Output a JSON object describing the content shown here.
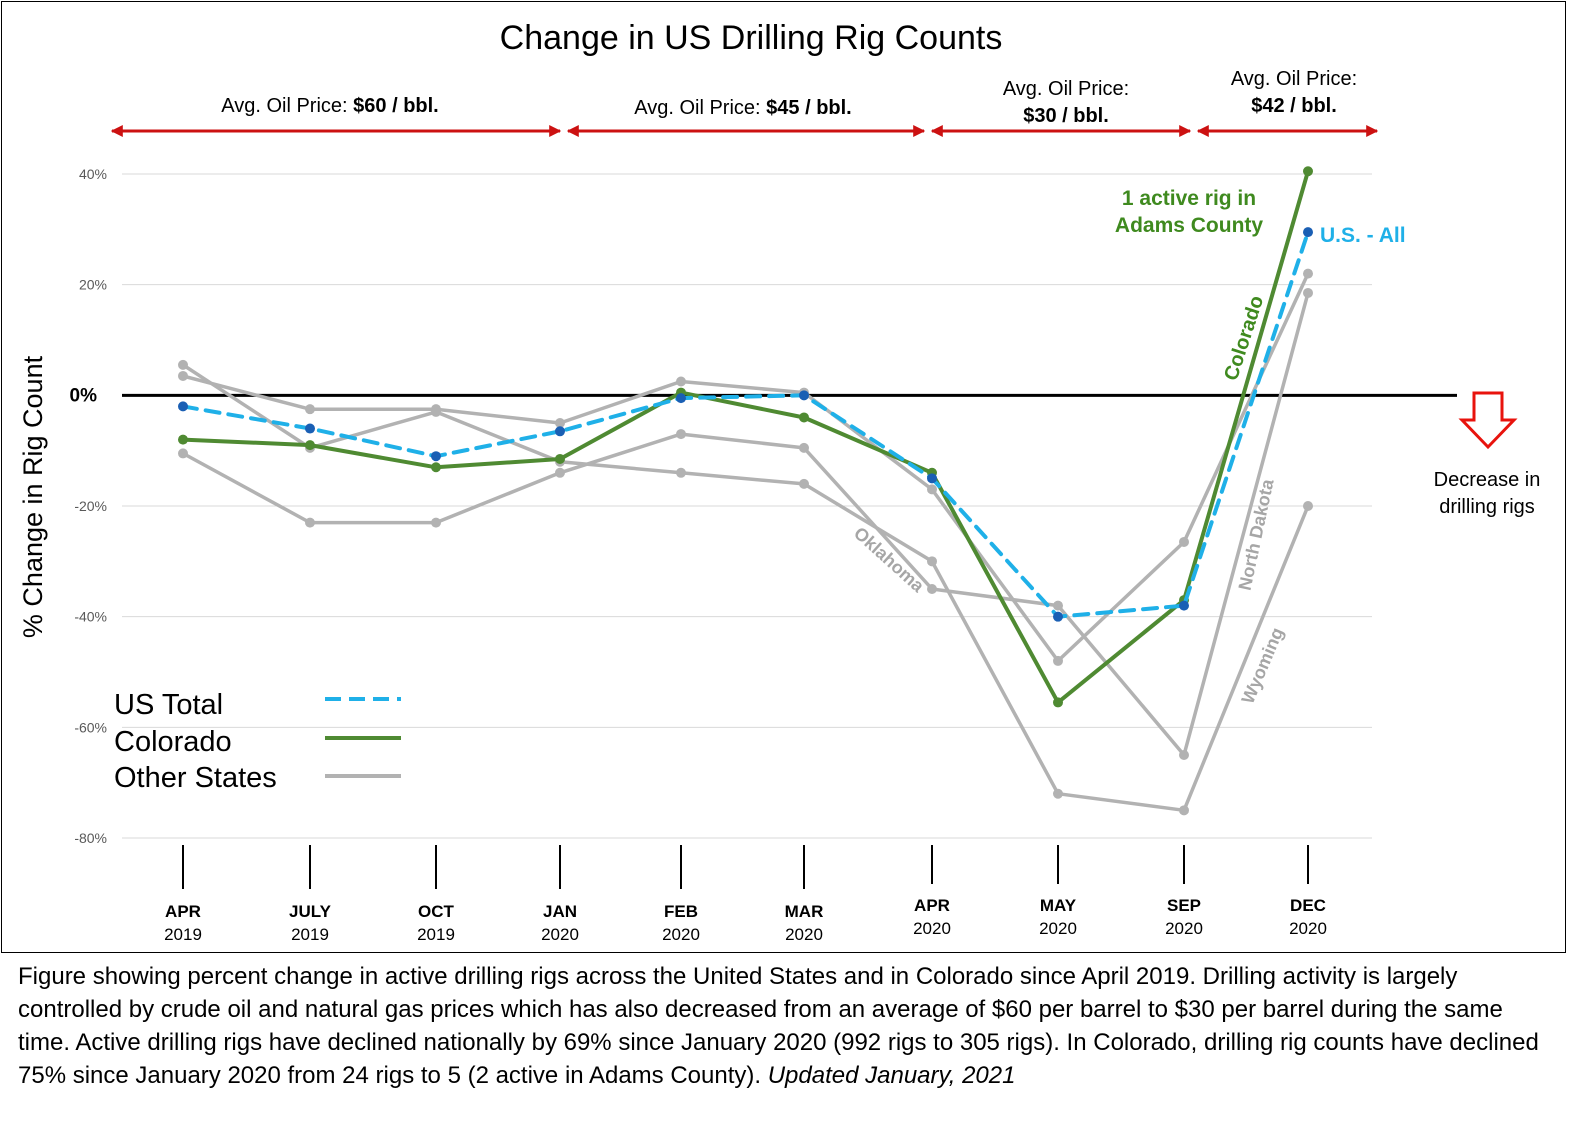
{
  "chart_data": {
    "type": "line",
    "title": "Change in US Drilling Rig Counts",
    "ylabel": "% Change in Rig Count",
    "xlabel": "",
    "ylim": [
      -80,
      40
    ],
    "yticks": [
      {
        "value": 40,
        "label": "40%"
      },
      {
        "value": 20,
        "label": "20%"
      },
      {
        "value": 0,
        "label": "0%"
      },
      {
        "value": -20,
        "label": "-20%"
      },
      {
        "value": -40,
        "label": "-40%"
      },
      {
        "value": -60,
        "label": "-60%"
      },
      {
        "value": -80,
        "label": "-80%"
      }
    ],
    "grid": true,
    "categories": [
      {
        "month": "APR",
        "year": "2019"
      },
      {
        "month": "JULY",
        "year": "2019"
      },
      {
        "month": "OCT",
        "year": "2019"
      },
      {
        "month": "JAN",
        "year": "2020"
      },
      {
        "month": "FEB",
        "year": "2020"
      },
      {
        "month": "MAR",
        "year": "2020"
      },
      {
        "month": "APR",
        "year": "2020"
      },
      {
        "month": "MAY",
        "year": "2020"
      },
      {
        "month": "SEP",
        "year": "2020"
      },
      {
        "month": "DEC",
        "year": "2020"
      }
    ],
    "series": [
      {
        "name": "US Total",
        "kind": "us",
        "color": "#1fb0e8",
        "values": [
          -2,
          -6,
          -11,
          -6.5,
          -0.5,
          0,
          -15,
          -40,
          -38,
          29.5
        ]
      },
      {
        "name": "Colorado",
        "kind": "co",
        "color": "#4f8a32",
        "values": [
          -8,
          -9,
          -13,
          -11.5,
          0.5,
          -4,
          -14,
          -55.5,
          -37,
          40.5
        ]
      },
      {
        "kind": "other",
        "color": "#b2b2b2",
        "values": [
          5.5,
          -9.5,
          -3,
          -12,
          -14,
          -16,
          -30,
          -72,
          -75,
          -20
        ]
      },
      {
        "kind": "other",
        "color": "#b2b2b2",
        "values": [
          3.5,
          -2.5,
          -2.5,
          -5,
          2.5,
          0.5,
          -17,
          -48,
          -26.5,
          22
        ]
      },
      {
        "kind": "other",
        "color": "#b2b2b2",
        "values": [
          -10.5,
          -23,
          -23,
          -14,
          -7,
          -9.5,
          -35,
          -38,
          -65,
          18.5
        ]
      }
    ],
    "legend": {
      "placement": "bottom-left",
      "items": [
        {
          "label": "US Total",
          "style": "dashed",
          "color": "#1fb0e8"
        },
        {
          "label": "Colorado",
          "style": "solid",
          "color": "#4f8a32"
        },
        {
          "label": "Other States",
          "style": "solid",
          "color": "#b2b2b2"
        }
      ]
    },
    "price_periods": [
      {
        "prefix": "Avg. Oil Price: ",
        "value": "$60 / bbl.",
        "suffix": ""
      },
      {
        "prefix": "Avg. Oil Price: ",
        "value": "$45 / bbl.",
        "suffix": ""
      },
      {
        "prefix": "Avg. Oil Price:",
        "value": "$30 / bbl.",
        "suffix": ""
      },
      {
        "prefix": "Avg. Oil Price:",
        "value": "$42 / bbl.",
        "suffix": ""
      }
    ],
    "annotations": {
      "adams_line1": "1 active rig in",
      "adams_line2": "Adams County",
      "us_all": "U.S. - All",
      "colorado": "Colorado",
      "oklahoma": "Oklahoma",
      "north_dakota": "North Dakota",
      "wyoming": "Wyoming",
      "decrease_line1": "Decrease in",
      "decrease_line2": "drilling  rigs"
    },
    "colors": {
      "red_arrow": "#cc1111",
      "axis": "#000000",
      "grid": "#d9d9d9",
      "tick_text": "#595959"
    }
  },
  "caption": {
    "text": "Figure showing percent change in active drilling rigs across the United States and in Colorado since April 2019.  Drilling activity is largely controlled by crude oil and natural gas prices which has also decreased from an average of $60 per barrel to $30 per barrel during the same time.  Active drilling rigs have declined nationally by 69% since January 2020 (992 rigs to 305 rigs).  In Colorado, drilling rig counts have declined 75% since January 2020 from 24 rigs to 5 (2 active in Adams County). ",
    "updated": "Updated January, 2021"
  }
}
